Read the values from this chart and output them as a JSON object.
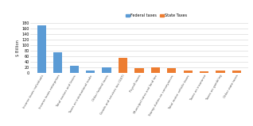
{
  "categories": [
    "Income taxes individuals",
    "Income taxes enterprises",
    "Total excises and levies",
    "Taxes on international trade",
    "Other federal taxes",
    "Goods and services tax (GST)",
    "Payroll taxes",
    "Municipal rates and land tax",
    "Stamp duties on conveyances",
    "Total motor vehicle taxes",
    "Taxes on insurance",
    "Taxes on gambling",
    "Other state taxes"
  ],
  "federal_values": [
    170,
    75,
    25,
    10,
    20,
    0,
    0,
    0,
    0,
    0,
    0,
    0,
    0
  ],
  "state_values": [
    0,
    0,
    0,
    0,
    0,
    55,
    18,
    20,
    17,
    10,
    7,
    8,
    8
  ],
  "federal_color": "#5b9bd5",
  "state_color": "#ed7d31",
  "ylabel": "$ Billion",
  "legend_federal": "Federal taxes",
  "legend_state": "State Taxes",
  "ylim": [
    0,
    180
  ],
  "yticks": [
    0,
    20,
    40,
    60,
    80,
    100,
    120,
    140,
    160,
    180
  ],
  "bg_color": "#ffffff",
  "grid_color": "#d3d3d3"
}
